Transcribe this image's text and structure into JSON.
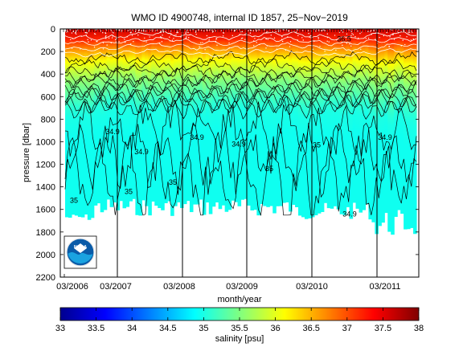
{
  "chart_data": [
    {
      "type": "heatmap",
      "title": "WMO ID 4900748, internal ID 1857, 25−Nov−2019",
      "xlabel": "month/year",
      "ylabel": "pressure [dbar]",
      "x_ticks": [
        "03/2006",
        "03/2007",
        "03/2008",
        "03/2009",
        "03/2010",
        "03/2011"
      ],
      "y_ticks": [
        0,
        200,
        400,
        600,
        800,
        1000,
        1200,
        1400,
        1600,
        1800,
        2000,
        2200
      ],
      "ylim": [
        2200,
        0
      ],
      "y_reversed": true,
      "vertical_markers": [
        "03/2007",
        "03/2008",
        "03/2009",
        "03/2010",
        "03/2011"
      ],
      "salinity_by_depth": [
        {
          "pressure": 0,
          "salinity": 37.6
        },
        {
          "pressure": 100,
          "salinity": 37.2
        },
        {
          "pressure": 200,
          "salinity": 36.6
        },
        {
          "pressure": 300,
          "salinity": 36.1
        },
        {
          "pressure": 400,
          "salinity": 35.8
        },
        {
          "pressure": 500,
          "salinity": 35.5
        },
        {
          "pressure": 600,
          "salinity": 35.3
        },
        {
          "pressure": 700,
          "salinity": 35.1
        },
        {
          "pressure": 800,
          "salinity": 35.0
        },
        {
          "pressure": 1000,
          "salinity": 34.95
        },
        {
          "pressure": 1200,
          "salinity": 34.95
        },
        {
          "pressure": 1600,
          "salinity": 34.95
        }
      ],
      "contour_labels": [
        {
          "text": "35",
          "x": "03/2006",
          "pressure": 1520
        },
        {
          "text": "34.9",
          "x": "03/2007",
          "pressure": 910
        },
        {
          "text": "35",
          "x": "03/2007",
          "pressure": 1440
        },
        {
          "text": "34.9",
          "x": "03/2007",
          "pressure": 1090
        },
        {
          "text": "34.9",
          "x": "03/2008",
          "pressure": 960
        },
        {
          "text": "35",
          "x": "03/2008",
          "pressure": 1360
        },
        {
          "text": "34.9",
          "x": "03/2009",
          "pressure": 1020
        },
        {
          "text": "35",
          "x": "03/2009",
          "pressure": 1240
        },
        {
          "text": "35",
          "x": "03/2010",
          "pressure": 1030
        },
        {
          "text": "34.9",
          "x": "03/2011",
          "pressure": 960
        },
        {
          "text": "34.9",
          "x": "03/2011",
          "pressure": 1640
        },
        {
          "text": "36.5",
          "x": "03/2010",
          "pressure": 90
        }
      ]
    },
    {
      "type": "colorbar",
      "xlabel": "salinity [psu]",
      "range": [
        33,
        38
      ],
      "ticks": [
        "33",
        "33.5",
        "34",
        "34.5",
        "35",
        "35.5",
        "36",
        "36.5",
        "37",
        "37.5",
        "38"
      ],
      "colormap": [
        "#00008f",
        "#0000ff",
        "#0080ff",
        "#00ffff",
        "#80ff80",
        "#ffff00",
        "#ff8000",
        "#ff0000",
        "#800000"
      ]
    }
  ],
  "logo": {
    "text": "NOAA"
  }
}
